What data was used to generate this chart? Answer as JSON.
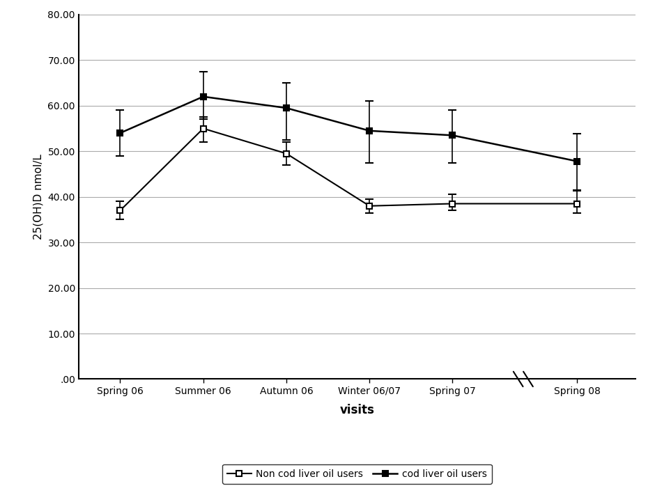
{
  "x_labels": [
    "Spring 06",
    "Summer 06",
    "Autumn 06",
    "Winter 06/07",
    "Spring 07",
    "Spring 08"
  ],
  "x_positions": [
    0,
    1,
    2,
    3,
    4,
    5.5
  ],
  "non_cod_values": [
    37.0,
    55.0,
    49.5,
    38.0,
    38.5,
    38.5
  ],
  "non_cod_yerr_lower": [
    2.0,
    3.0,
    2.5,
    1.5,
    1.5,
    2.0
  ],
  "non_cod_yerr_upper": [
    2.0,
    2.5,
    2.5,
    1.5,
    2.0,
    3.0
  ],
  "cod_values": [
    54.0,
    62.0,
    59.5,
    54.5,
    53.5,
    47.8
  ],
  "cod_yerr_lower": [
    5.0,
    5.0,
    7.0,
    7.0,
    6.0,
    6.5
  ],
  "cod_yerr_upper": [
    5.0,
    5.5,
    5.5,
    6.5,
    5.5,
    6.0
  ],
  "ylabel": "25(OH)D nmol/L",
  "xlabel": "visits",
  "ylim_min": 0.0,
  "ylim_max": 80.0,
  "yticks": [
    0.0,
    10.0,
    20.0,
    30.0,
    40.0,
    50.0,
    60.0,
    70.0,
    80.0
  ],
  "ytick_labels": [
    ".00",
    "10.00",
    "20.00",
    "30.00",
    "40.00",
    "50.00",
    "60.00",
    "70.00",
    "80.00"
  ],
  "legend_non_cod": "Non cod liver oil users",
  "legend_cod": "cod liver oil users",
  "line_color": "#000000",
  "background_color": "#ffffff",
  "grid_color": "#aaaaaa"
}
